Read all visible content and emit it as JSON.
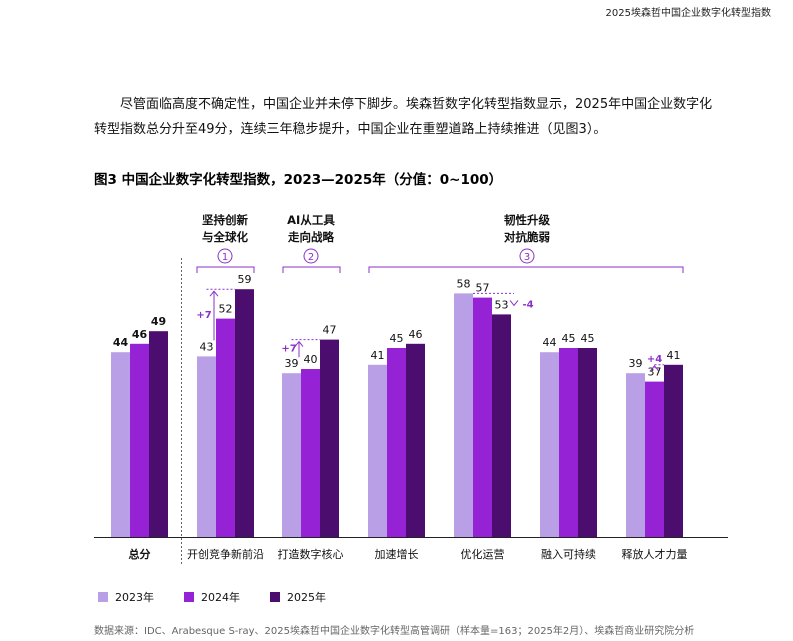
{
  "header": {
    "doc_title": "2025埃森哲中国企业数字化转型指数"
  },
  "intro": {
    "text": "尽管面临高度不确定性，中国企业并未停下脚步。埃森哲数字化转型指数显示，2025年中国企业数字化转型指数总分升至49分，连续三年稳步提升，中国企业在重塑道路上持续推进（见图3）。"
  },
  "figure": {
    "title": "图3  中国企业数字化转型指数，2023—2025年（分值：0~100）"
  },
  "colors": {
    "2023": "#b99fe6",
    "2024": "#9622d6",
    "2025": "#4b0d6e",
    "annotation": "#8a30c8"
  },
  "chart_data": {
    "type": "bar",
    "categories": [
      "总分",
      "开创竞争新前沿",
      "打造数字核心",
      "加速增长",
      "优化运营",
      "融入可持续",
      "释放人才力量"
    ],
    "series": [
      {
        "name": "2023年",
        "values": [
          44,
          43,
          39,
          41,
          58,
          44,
          39
        ]
      },
      {
        "name": "2024年",
        "values": [
          46,
          52,
          40,
          45,
          57,
          45,
          37
        ]
      },
      {
        "name": "2025年",
        "values": [
          49,
          59,
          47,
          46,
          53,
          45,
          41
        ]
      }
    ],
    "ylim": [
      0,
      100
    ],
    "grid": false,
    "legend_position": "bottom-left",
    "groups": [
      {
        "number": "①",
        "label_lines": [
          "坚持创新",
          "与全球化"
        ]
      },
      {
        "number": "②",
        "label_lines": [
          "AI从工具",
          "走向战略"
        ]
      },
      {
        "number": "③",
        "label_lines": [
          "韧性升级",
          "对抗脆弱"
        ]
      }
    ],
    "annotations": [
      "+7",
      "+7",
      "-4",
      "+4"
    ]
  },
  "source": "数据来源：IDC、Arabesque S-ray、2025埃森哲中国企业数字化转型高管调研（样本量=163；2025年2月）、埃森哲商业研究院分析"
}
